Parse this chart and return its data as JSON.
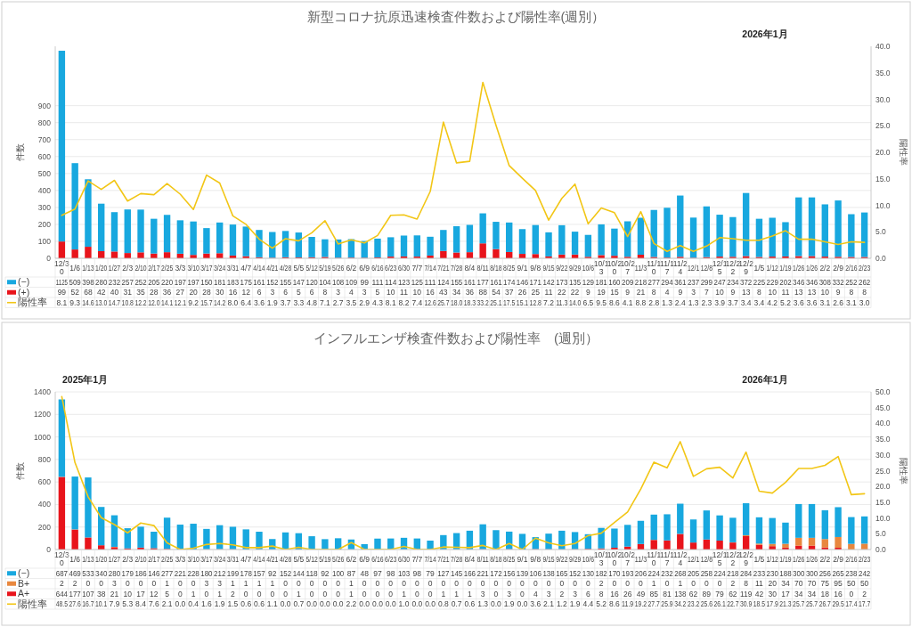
{
  "chart_data": [
    {
      "type": "bar",
      "title": "新型コロナ抗原迅速検査件数および陽性率(週別）",
      "ylabel": "件数",
      "y2label": "陽性率",
      "stacked": true,
      "grid": "y",
      "legend": "bottom",
      "data_labels": true,
      "categories": [
        "12/30",
        "1/6",
        "1/13",
        "1/20",
        "1/27",
        "2/3",
        "2/10",
        "2/17",
        "2/25",
        "3/3",
        "3/10",
        "3/17",
        "3/24",
        "3/31",
        "4/7",
        "4/14",
        "4/21",
        "4/28",
        "5/5",
        "5/12",
        "5/19",
        "5/26",
        "6/2",
        "6/9",
        "6/16",
        "6/23",
        "6/30",
        "7/7",
        "7/14",
        "7/21",
        "7/28",
        "8/4",
        "8/11",
        "8/18",
        "8/25",
        "9/1",
        "9/8",
        "9/15",
        "9/22",
        "9/29",
        "10/6",
        "10/13",
        "10/20",
        "10/27",
        "11/3",
        "11/10",
        "11/17",
        "11/24",
        "12/1",
        "12/8",
        "12/15",
        "12/22",
        "12/29",
        "1/5",
        "1/12",
        "1/19",
        "1/26",
        "1/26",
        "2/2",
        "2/9",
        "2/16",
        "2/23"
      ],
      "series": [
        {
          "name": "(+)",
          "color": "#e8141b",
          "values": [
            99,
            52,
            68,
            42,
            40,
            31,
            35,
            28,
            36,
            27,
            20,
            28,
            30,
            16,
            12,
            6,
            3,
            6,
            5,
            6,
            8,
            3,
            4,
            3,
            5,
            10,
            11,
            10,
            16,
            43,
            34,
            36,
            88,
            54,
            37,
            26,
            25,
            11,
            22,
            22,
            9,
            19,
            15,
            9,
            21,
            8,
            4,
            9,
            3,
            7,
            10,
            9,
            13,
            8,
            10,
            11,
            13,
            13,
            10,
            9,
            8,
            8
          ]
        },
        {
          "name": "(−)",
          "color": "#18a8df",
          "values": [
            1125,
            509,
            398,
            280,
            232,
            257,
            252,
            205,
            220,
            197,
            197,
            150,
            181,
            183,
            175,
            161,
            152,
            155,
            147,
            120,
            104,
            108,
            109,
            99,
            111,
            114,
            123,
            125,
            111,
            124,
            155,
            161,
            177,
            161,
            174,
            146,
            171,
            142,
            173,
            135,
            129,
            181,
            160,
            209,
            218,
            277,
            294,
            361,
            237,
            299,
            247,
            234,
            372,
            225,
            229,
            202,
            346,
            346,
            308,
            332,
            252,
            262
          ]
        },
        {
          "name": "陽性率",
          "type": "line",
          "axis": "y2",
          "color": "#f2c616",
          "value_labels": [
            "8.1",
            "9.3",
            "14.6",
            "13.0",
            "14.7",
            "10.8",
            "12.2",
            "12.0",
            "14.1",
            "12.1",
            "9.2",
            "15.7",
            "14.2",
            "8.0",
            "6.4",
            "3.6",
            "1.9",
            "3.7",
            "3.3",
            "4.8",
            "7.1",
            "2.7",
            "3.5",
            "2.9",
            "4.3",
            "8.1",
            "8.2",
            "7.4",
            "12.6",
            "25.7",
            "18.0",
            "18.3",
            "33.2",
            "25.1",
            "17.5",
            "15.1",
            "12.8",
            "7.2",
            "11.3",
            "14.0",
            "6.5",
            "9.5",
            "8.6",
            "4.1",
            "8.8",
            "2.8",
            "1.3",
            "2.4",
            "1.3",
            "2.3",
            "3.9",
            "3.7",
            "3.4",
            "3.4",
            "4.2",
            "5.2",
            "3.6",
            "3.6",
            "3.1",
            "2.6",
            "3.1",
            "3.0"
          ],
          "values": [
            8.1,
            9.3,
            14.6,
            13.0,
            14.7,
            10.8,
            12.2,
            12.0,
            14.1,
            12.1,
            9.2,
            15.7,
            14.2,
            8.0,
            6.4,
            3.6,
            1.9,
            3.7,
            3.3,
            4.8,
            7.1,
            2.7,
            3.5,
            2.9,
            4.3,
            8.1,
            8.2,
            7.4,
            12.6,
            25.7,
            18.0,
            18.3,
            33.2,
            25.1,
            17.5,
            15.1,
            12.8,
            7.2,
            11.3,
            14.0,
            6.5,
            9.5,
            8.6,
            4.1,
            8.8,
            2.8,
            1.3,
            2.4,
            1.3,
            2.3,
            3.9,
            3.7,
            3.4,
            3.4,
            4.2,
            5.2,
            3.6,
            3.6,
            3.1,
            2.6,
            3.1,
            3.0
          ]
        }
      ],
      "ylim": [
        0,
        1250
      ],
      "yticks": [
        0,
        100,
        200,
        300,
        400,
        500,
        600,
        700,
        800,
        900
      ],
      "y2lim": [
        0,
        40
      ],
      "y2ticks": [
        {
          "value": 0,
          "label": "0.0"
        },
        {
          "value": 5,
          "label": "5.0"
        },
        {
          "value": 10,
          "label": "10.0"
        },
        {
          "value": 15,
          "label": "15.0"
        },
        {
          "value": 20,
          "label": "20.0"
        },
        {
          "value": 25,
          "label": "25.0"
        },
        {
          "value": 30,
          "label": "30.0"
        },
        {
          "value": 35,
          "label": "35.0"
        },
        {
          "value": 40,
          "label": "40.0"
        }
      ],
      "annotations": [
        "2026年1月"
      ]
    },
    {
      "type": "bar",
      "title": "インフルエンザ検査件数および陽性率　(週別）",
      "ylabel": "件数",
      "y2label": "陽性率",
      "stacked": true,
      "grid": "y",
      "legend": "bottom",
      "data_labels": true,
      "categories": [
        "12/30",
        "1/6",
        "1/13",
        "1/20",
        "1/27",
        "2/3",
        "2/10",
        "2/17",
        "2/25",
        "3/3",
        "3/10",
        "3/17",
        "3/24",
        "3/31",
        "4/7",
        "4/14",
        "4/21",
        "4/28",
        "5/5",
        "5/12",
        "5/19",
        "5/26",
        "6/2",
        "6/9",
        "6/16",
        "6/23",
        "6/30",
        "7/7",
        "7/14",
        "7/21",
        "7/28",
        "8/4",
        "8/11",
        "8/18",
        "8/25",
        "9/1",
        "9/8",
        "9/15",
        "9/22",
        "9/29",
        "10/6",
        "10/13",
        "10/20",
        "10/27",
        "11/3",
        "11/10",
        "11/17",
        "11/24",
        "12/1",
        "12/8",
        "12/15",
        "12/22",
        "12/29",
        "1/5",
        "1/12",
        "1/19",
        "1/26",
        "1/26",
        "2/2",
        "2/9",
        "2/16",
        "2/23"
      ],
      "series": [
        {
          "name": "A+",
          "color": "#e8141b",
          "values": [
            644,
            177,
            107,
            38,
            21,
            10,
            17,
            12,
            5,
            0,
            1,
            0,
            1,
            2,
            0,
            0,
            0,
            0,
            1,
            0,
            0,
            0,
            1,
            0,
            0,
            0,
            1,
            0,
            0,
            1,
            1,
            1,
            3,
            0,
            3,
            0,
            4,
            3,
            2,
            3,
            6,
            8,
            16,
            26,
            49,
            85,
            81,
            138,
            62,
            89,
            79,
            62,
            119,
            42,
            30,
            17,
            34,
            34,
            18,
            16,
            0,
            2
          ]
        },
        {
          "name": "B+",
          "color": "#e8873e",
          "values": [
            2,
            2,
            0,
            0,
            3,
            0,
            0,
            0,
            1,
            0,
            0,
            3,
            3,
            1,
            1,
            1,
            1,
            0,
            0,
            0,
            0,
            0,
            1,
            0,
            0,
            0,
            0,
            0,
            0,
            0,
            0,
            0,
            0,
            0,
            0,
            0,
            0,
            0,
            0,
            0,
            0,
            2,
            0,
            0,
            0,
            1,
            0,
            1,
            0,
            0,
            0,
            2,
            8,
            11,
            20,
            34,
            70,
            70,
            75,
            95,
            50,
            50
          ]
        },
        {
          "name": "(−)",
          "color": "#18a8df",
          "values": [
            687,
            469,
            533,
            340,
            280,
            179,
            186,
            146,
            277,
            221,
            228,
            180,
            212,
            199,
            178,
            157,
            92,
            152,
            144,
            118,
            92,
            100,
            87,
            48,
            97,
            98,
            103,
            98,
            79,
            127,
            145,
            166,
            221,
            172,
            156,
            139,
            106,
            138,
            165,
            152,
            130,
            182,
            170,
            193,
            206,
            224,
            232,
            268,
            205,
            258,
            224,
            218,
            284,
            233,
            230,
            188,
            300,
            300,
            256,
            265,
            238,
            242
          ]
        },
        {
          "name": "陽性率",
          "type": "line",
          "axis": "y2",
          "color": "#f2c616",
          "value_labels": [
            "48.5",
            "27.6",
            "16.7",
            "10.1",
            "7.9",
            "5.3",
            "8.4",
            "7.6",
            "2.1",
            "0.0",
            "0.4",
            "1.6",
            "1.9",
            "1.5",
            "0.6",
            "0.6",
            "1.1",
            "0.0",
            "0.7",
            "0.0",
            "0.0",
            "0.0",
            "2.2",
            "0.0",
            "0.0",
            "0.0",
            "1.0",
            "0.0",
            "0.0",
            "0.8",
            "0.7",
            "0.6",
            "1.3",
            "0.0",
            "1.9",
            "0.0",
            "3.6",
            "2.1",
            "1.2",
            "1.9",
            "4.4",
            "5.2",
            "8.6",
            "11.9",
            "19.2",
            "27.7",
            "25.9",
            "34.2",
            "23.2",
            "25.6",
            "26.1",
            "22.7",
            "30.9",
            "18.5",
            "17.9",
            "21.3",
            "25.7",
            "25.7",
            "26.7",
            "29.5",
            "17.4",
            "17.7"
          ],
          "values": [
            48.5,
            27.6,
            16.7,
            10.1,
            7.9,
            5.3,
            8.4,
            7.6,
            2.1,
            0.0,
            0.4,
            1.6,
            1.9,
            1.5,
            0.6,
            0.6,
            1.1,
            0.0,
            0.7,
            0.0,
            0.0,
            0.0,
            2.2,
            0.0,
            0.0,
            0.0,
            1.0,
            0.0,
            0.0,
            0.8,
            0.7,
            0.6,
            1.3,
            0.0,
            1.9,
            0.0,
            3.6,
            2.1,
            1.2,
            1.9,
            4.4,
            5.2,
            8.6,
            11.9,
            19.2,
            27.7,
            25.9,
            34.2,
            23.2,
            25.6,
            26.1,
            22.7,
            30.9,
            18.5,
            17.9,
            21.3,
            25.7,
            25.7,
            26.7,
            29.5,
            17.4,
            17.7
          ]
        }
      ],
      "ylim": [
        0,
        1400
      ],
      "yticks": [
        0,
        200,
        400,
        600,
        800,
        1000,
        1200,
        1400
      ],
      "y2lim": [
        0,
        50
      ],
      "y2ticks": [
        {
          "value": 0,
          "label": "0.0"
        },
        {
          "value": 5,
          "label": "5.0"
        },
        {
          "value": 10,
          "label": "10.0"
        },
        {
          "value": 15,
          "label": "15.0"
        },
        {
          "value": 20,
          "label": "20.0"
        },
        {
          "value": 25,
          "label": "25.0"
        },
        {
          "value": 30,
          "label": "30.0"
        },
        {
          "value": 35,
          "label": "35.0"
        },
        {
          "value": 40,
          "label": "40.0"
        },
        {
          "value": 45,
          "label": "45.0"
        },
        {
          "value": 50,
          "label": "50.0"
        }
      ],
      "annotations": [
        "2025年1月",
        "2026年1月"
      ]
    }
  ]
}
